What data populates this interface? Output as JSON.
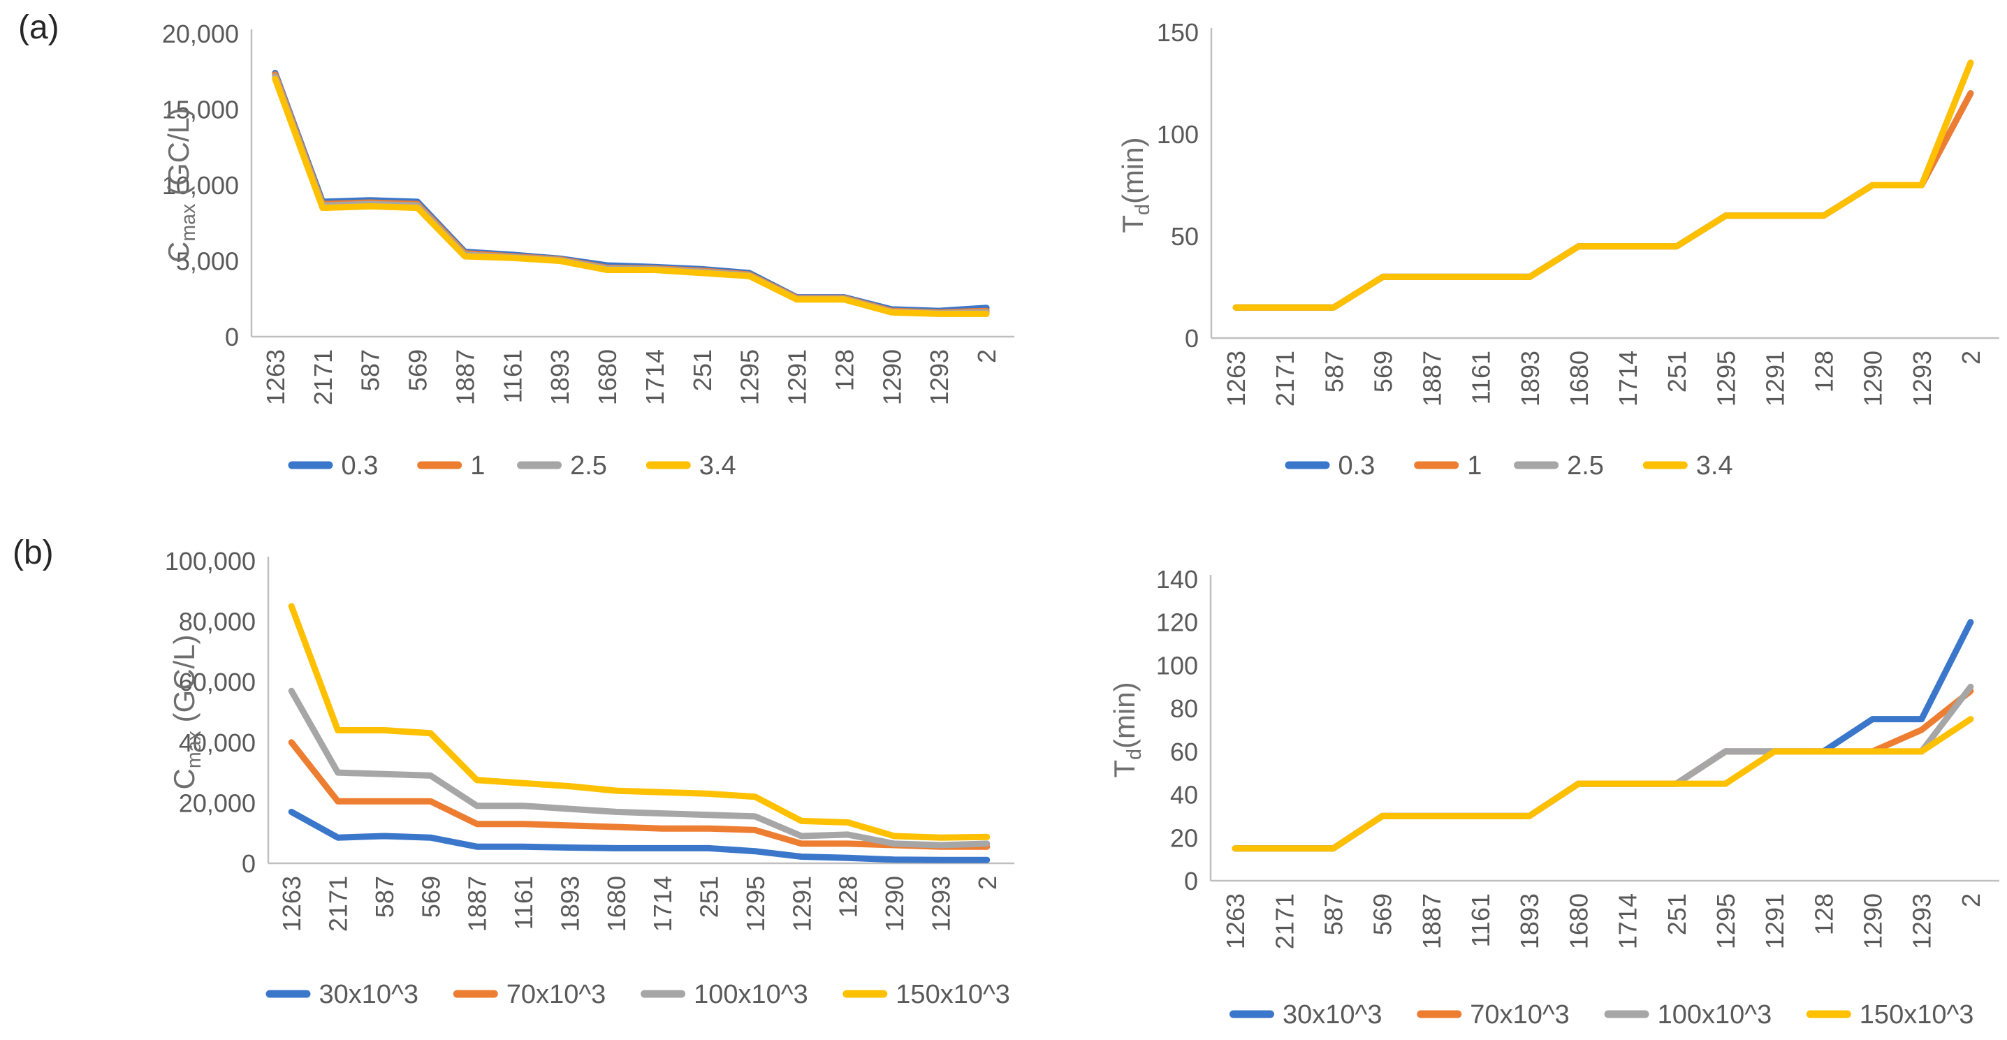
{
  "figure": {
    "panel_a_label": "(a)",
    "panel_b_label": "(b)"
  },
  "colors": {
    "series_blue": "#3A76C9",
    "series_orange": "#ED7D31",
    "series_gray": "#A6A6A6",
    "series_yellow": "#FFC000",
    "axis_line": "#BFBFBF",
    "tick_text": "#595959",
    "axis_title_text": "#6E6E6E",
    "legend_text": "#595959",
    "background": "#FFFFFF"
  },
  "chart_data": [
    {
      "id": "a-cmax",
      "type": "line",
      "panel": "a",
      "title": "",
      "ylabel": "Cmax (GC/L)",
      "ylabel_parts": {
        "base": "C",
        "sub": "max",
        "rest": " (GC/L)"
      },
      "xlabel": "",
      "ylim": [
        0,
        20000
      ],
      "yticks": [
        0,
        5000,
        10000,
        15000,
        20000
      ],
      "ytick_labels": [
        "0",
        "5,000",
        "10,000",
        "15,000",
        "20,000"
      ],
      "grid": false,
      "legend_position": "bottom",
      "x_tick_rotation": -90,
      "categories": [
        "1263",
        "2171",
        "587",
        "569",
        "1887",
        "1161",
        "1893",
        "1680",
        "1714",
        "251",
        "1295",
        "1291",
        "128",
        "1290",
        "1293",
        "2"
      ],
      "series": [
        {
          "name": "0.3",
          "color_key": "series_blue",
          "values": [
            17400,
            8900,
            9000,
            8900,
            5600,
            5400,
            5150,
            4700,
            4600,
            4450,
            4200,
            2600,
            2600,
            1800,
            1700,
            1900
          ]
        },
        {
          "name": "1",
          "color_key": "series_orange",
          "values": [
            17300,
            8750,
            8850,
            8750,
            5500,
            5300,
            5100,
            4550,
            4500,
            4350,
            4100,
            2550,
            2550,
            1700,
            1600,
            1700
          ]
        },
        {
          "name": "2.5",
          "color_key": "series_gray",
          "values": [
            17150,
            8650,
            8750,
            8650,
            5400,
            5250,
            5050,
            4500,
            4450,
            4280,
            4050,
            2500,
            2500,
            1650,
            1550,
            1600
          ]
        },
        {
          "name": "3.4",
          "color_key": "series_yellow",
          "values": [
            17000,
            8500,
            8600,
            8500,
            5300,
            5200,
            5000,
            4400,
            4400,
            4200,
            4000,
            2450,
            2450,
            1600,
            1500,
            1500
          ]
        }
      ]
    },
    {
      "id": "a-td",
      "type": "line",
      "panel": "a",
      "title": "",
      "ylabel": "Td(min)",
      "ylabel_parts": {
        "base": "T",
        "sub": "d",
        "rest": "(min)"
      },
      "xlabel": "",
      "ylim": [
        0,
        150
      ],
      "yticks": [
        0,
        50,
        100,
        150
      ],
      "ytick_labels": [
        "0",
        "50",
        "100",
        "150"
      ],
      "grid": false,
      "legend_position": "bottom",
      "x_tick_rotation": -90,
      "categories": [
        "1263",
        "2171",
        "587",
        "569",
        "1887",
        "1161",
        "1893",
        "1680",
        "1714",
        "251",
        "1295",
        "1291",
        "128",
        "1290",
        "1293",
        "2"
      ],
      "series": [
        {
          "name": "0.3",
          "color_key": "series_blue",
          "values": [
            15,
            15,
            15,
            30,
            30,
            30,
            30,
            45,
            45,
            45,
            60,
            60,
            60,
            75,
            75,
            120
          ]
        },
        {
          "name": "1",
          "color_key": "series_orange",
          "values": [
            15,
            15,
            15,
            30,
            30,
            30,
            30,
            45,
            45,
            45,
            60,
            60,
            60,
            75,
            75,
            120
          ]
        },
        {
          "name": "2.5",
          "color_key": "series_gray",
          "values": [
            15,
            15,
            15,
            30,
            30,
            30,
            30,
            45,
            45,
            45,
            60,
            60,
            60,
            75,
            75,
            135
          ]
        },
        {
          "name": "3.4",
          "color_key": "series_yellow",
          "values": [
            15,
            15,
            15,
            30,
            30,
            30,
            30,
            45,
            45,
            45,
            60,
            60,
            60,
            75,
            75,
            135
          ]
        }
      ]
    },
    {
      "id": "b-cmax",
      "type": "line",
      "panel": "b",
      "title": "",
      "ylabel": "Cmax (GC/L)",
      "ylabel_parts": {
        "base": "C",
        "sub": "max",
        "rest": " (GC/L)"
      },
      "xlabel": "",
      "ylim": [
        0,
        100000
      ],
      "yticks": [
        0,
        20000,
        40000,
        60000,
        80000,
        100000
      ],
      "ytick_labels": [
        "0",
        "20,000",
        "40,000",
        "60,000",
        "80,000",
        "100,000"
      ],
      "grid": false,
      "legend_position": "bottom",
      "x_tick_rotation": -90,
      "categories": [
        "1263",
        "2171",
        "587",
        "569",
        "1887",
        "1161",
        "1893",
        "1680",
        "1714",
        "251",
        "1295",
        "1291",
        "128",
        "1290",
        "1293",
        "2"
      ],
      "series": [
        {
          "name": "30x10^3",
          "color_key": "series_blue",
          "values": [
            17000,
            8500,
            9000,
            8500,
            5500,
            5500,
            5200,
            5000,
            5000,
            5000,
            4000,
            2200,
            1800,
            1200,
            1100,
            1100
          ]
        },
        {
          "name": "70x10^3",
          "color_key": "series_orange",
          "values": [
            40000,
            20500,
            20500,
            20500,
            13000,
            13000,
            12500,
            12000,
            11500,
            11500,
            11000,
            6500,
            6500,
            6000,
            5500,
            5500
          ]
        },
        {
          "name": "100x10^3",
          "color_key": "series_gray",
          "values": [
            57000,
            30000,
            29500,
            29000,
            19000,
            19000,
            18000,
            17000,
            16500,
            16000,
            15500,
            9000,
            9500,
            6500,
            6000,
            6500
          ]
        },
        {
          "name": "150x10^3",
          "color_key": "series_yellow",
          "values": [
            85000,
            44000,
            44000,
            43000,
            27500,
            26500,
            25500,
            24000,
            23500,
            23000,
            22000,
            14000,
            13500,
            9000,
            8500,
            8700
          ]
        }
      ]
    },
    {
      "id": "b-td",
      "type": "line",
      "panel": "b",
      "title": "",
      "ylabel": "Td(min)",
      "ylabel_parts": {
        "base": "T",
        "sub": "d",
        "rest": "(min)"
      },
      "xlabel": "",
      "ylim": [
        0,
        140
      ],
      "yticks": [
        0,
        20,
        40,
        60,
        80,
        100,
        120,
        140
      ],
      "ytick_labels": [
        "0",
        "20",
        "40",
        "60",
        "80",
        "100",
        "120",
        "140"
      ],
      "grid": false,
      "legend_position": "bottom",
      "x_tick_rotation": -90,
      "categories": [
        "1263",
        "2171",
        "587",
        "569",
        "1887",
        "1161",
        "1893",
        "1680",
        "1714",
        "251",
        "1295",
        "1291",
        "128",
        "1290",
        "1293",
        "2"
      ],
      "series": [
        {
          "name": "30x10^3",
          "color_key": "series_blue",
          "values": [
            15,
            15,
            15,
            30,
            30,
            30,
            30,
            45,
            45,
            45,
            60,
            60,
            60,
            75,
            75,
            120
          ]
        },
        {
          "name": "70x10^3",
          "color_key": "series_orange",
          "values": [
            15,
            15,
            15,
            30,
            30,
            30,
            30,
            45,
            45,
            45,
            60,
            60,
            60,
            60,
            70,
            88
          ]
        },
        {
          "name": "100x10^3",
          "color_key": "series_gray",
          "values": [
            15,
            15,
            15,
            30,
            30,
            30,
            30,
            45,
            45,
            45,
            60,
            60,
            60,
            60,
            60,
            90
          ]
        },
        {
          "name": "150x10^3",
          "color_key": "series_yellow",
          "values": [
            15,
            15,
            15,
            30,
            30,
            30,
            30,
            45,
            45,
            45,
            45,
            60,
            60,
            60,
            60,
            75
          ]
        }
      ]
    }
  ]
}
